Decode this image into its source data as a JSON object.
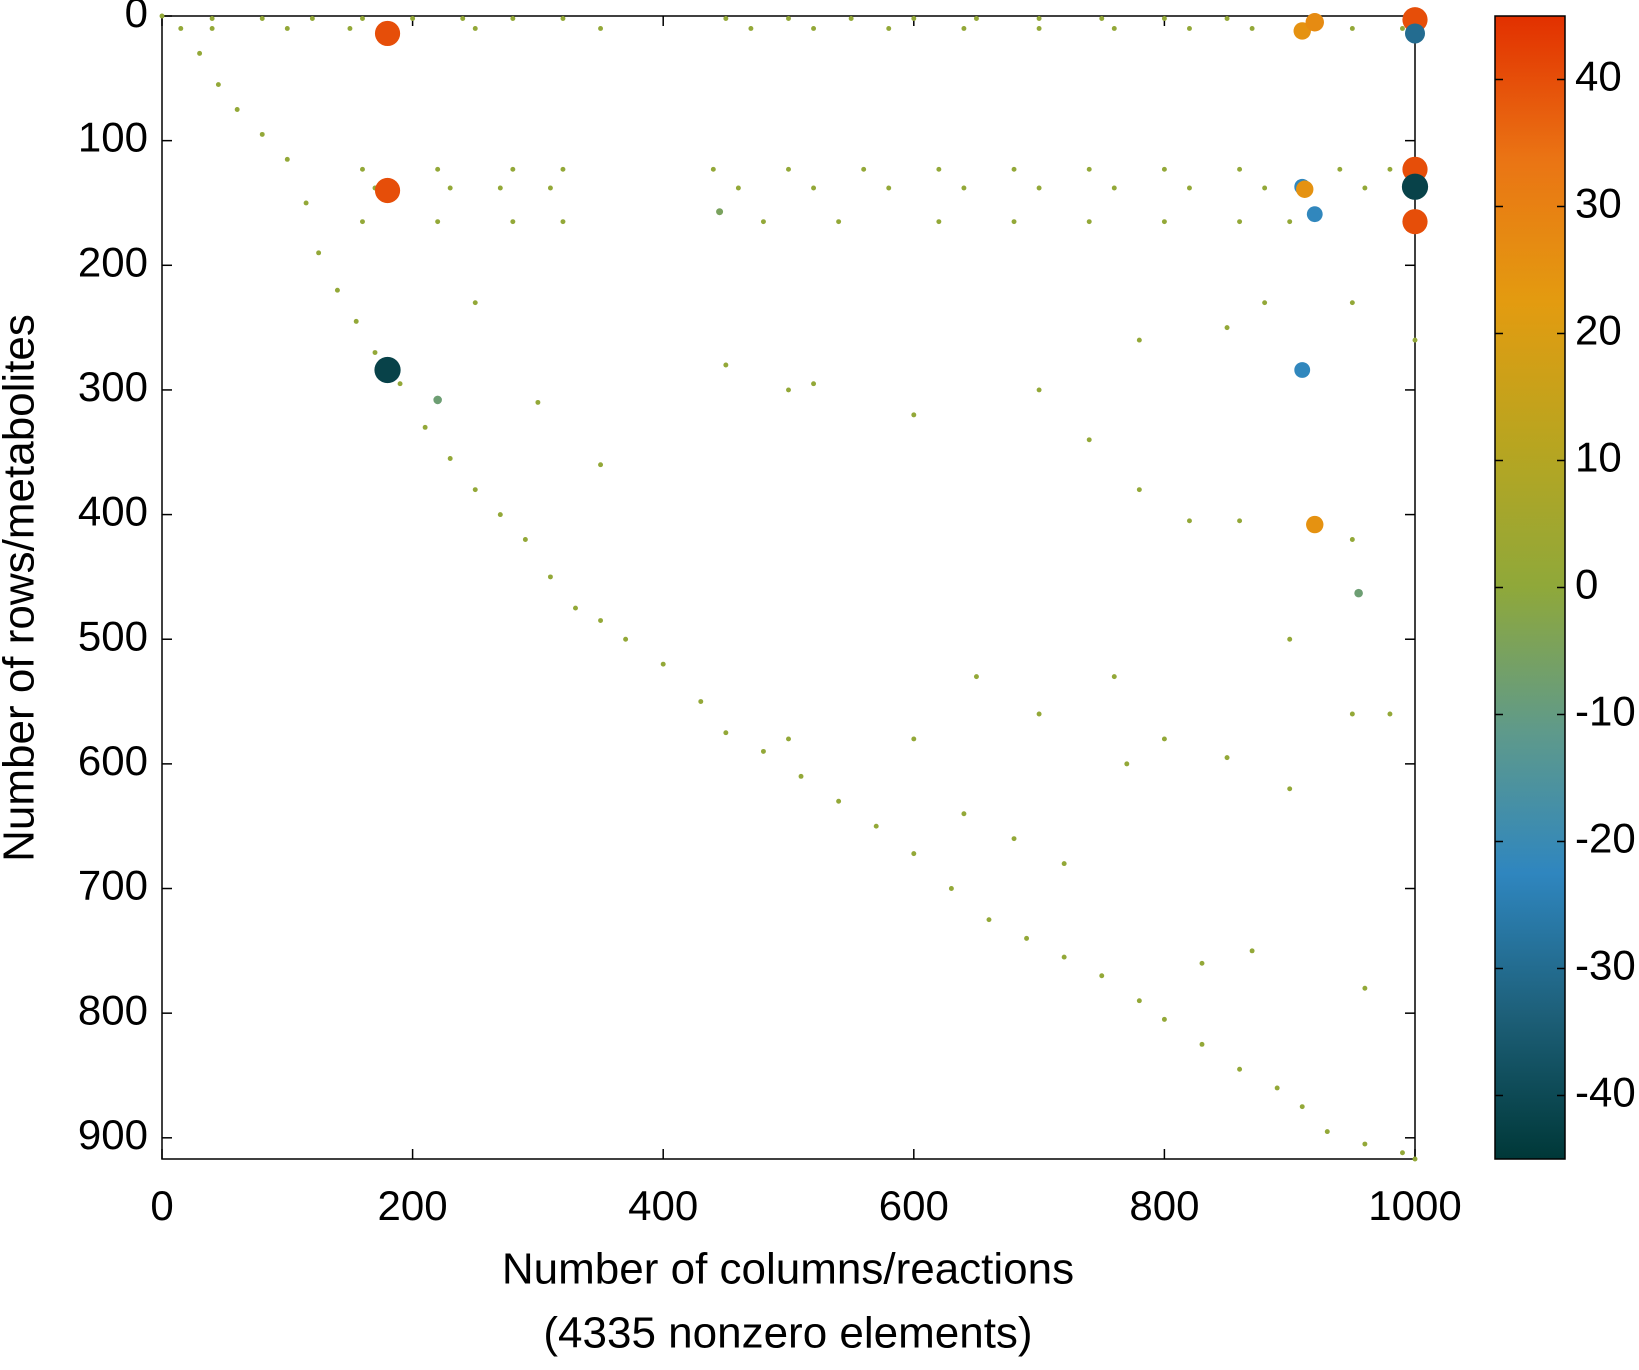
{
  "chart_data": {
    "type": "scatter",
    "ylabel": "Number of rows/metabolites",
    "xlabel": [
      "Number of columns/reactions",
      "(4335 nonzero elements)"
    ],
    "xlim": [
      0,
      1000
    ],
    "ylim": [
      917,
      0
    ],
    "xticks": [
      0,
      200,
      400,
      600,
      800,
      1000
    ],
    "yticks": [
      0,
      100,
      200,
      300,
      400,
      500,
      600,
      700,
      800,
      900
    ],
    "y_inverted": true,
    "clim": [
      -45,
      45
    ],
    "cticks": [
      -40,
      -30,
      -20,
      -10,
      0,
      10,
      20,
      30,
      40
    ],
    "colormap": [
      "#003838",
      "#1d5f78",
      "#2f86bf",
      "#5f9a8a",
      "#8fa83a",
      "#b8a520",
      "#e39b10",
      "#ea7414",
      "#e23000"
    ],
    "x": [
      0,
      15,
      30,
      45,
      60,
      80,
      100,
      115,
      125,
      140,
      155,
      170,
      190,
      210,
      230,
      250,
      270,
      290,
      310,
      330,
      350,
      370,
      400,
      430,
      450,
      480,
      510,
      540,
      570,
      600,
      630,
      660,
      690,
      720,
      750,
      780,
      800,
      830,
      860,
      890,
      910,
      930,
      960,
      990,
      1000,
      40,
      80,
      120,
      160,
      200,
      240,
      280,
      320,
      450,
      500,
      550,
      600,
      650,
      700,
      750,
      800,
      850,
      40,
      100,
      150,
      250,
      350,
      470,
      520,
      580,
      640,
      700,
      760,
      820,
      870,
      950,
      990,
      160,
      220,
      280,
      320,
      440,
      500,
      560,
      620,
      680,
      740,
      800,
      860,
      940,
      980,
      170,
      230,
      270,
      310,
      460,
      520,
      580,
      640,
      700,
      760,
      820,
      880,
      960,
      160,
      220,
      280,
      320,
      480,
      540,
      620,
      680,
      740,
      800,
      860,
      900,
      250,
      300,
      350,
      450,
      500,
      520,
      600,
      700,
      740,
      780,
      850,
      880,
      950,
      1000,
      780,
      820,
      860,
      900,
      950,
      500,
      600,
      640,
      680,
      720,
      770,
      800,
      850,
      900,
      950,
      980,
      650,
      700,
      760,
      830,
      870,
      960,
      180,
      180,
      180,
      910,
      920,
      1000,
      1000,
      1000,
      1000,
      1000,
      910,
      912,
      920,
      910,
      920,
      955,
      445,
      220
    ],
    "y": [
      0,
      10,
      30,
      55,
      75,
      95,
      115,
      150,
      190,
      220,
      245,
      270,
      295,
      330,
      355,
      380,
      400,
      420,
      450,
      475,
      485,
      500,
      520,
      550,
      575,
      590,
      610,
      630,
      650,
      672,
      700,
      725,
      740,
      755,
      770,
      790,
      805,
      825,
      845,
      860,
      875,
      895,
      905,
      912,
      917,
      2,
      2,
      2,
      2,
      2,
      2,
      2,
      2,
      2,
      2,
      2,
      2,
      2,
      2,
      2,
      2,
      2,
      10,
      10,
      10,
      10,
      10,
      10,
      10,
      10,
      10,
      10,
      10,
      10,
      10,
      10,
      10,
      123,
      123,
      123,
      123,
      123,
      123,
      123,
      123,
      123,
      123,
      123,
      123,
      123,
      123,
      138,
      138,
      138,
      138,
      138,
      138,
      138,
      138,
      138,
      138,
      138,
      138,
      138,
      165,
      165,
      165,
      165,
      165,
      165,
      165,
      165,
      165,
      165,
      165,
      165,
      230,
      310,
      360,
      280,
      300,
      295,
      320,
      300,
      340,
      260,
      250,
      230,
      230,
      260,
      380,
      405,
      405,
      500,
      420,
      580,
      580,
      640,
      660,
      680,
      600,
      580,
      595,
      620,
      560,
      560,
      530,
      560,
      530,
      760,
      750,
      780,
      14,
      140,
      284,
      12,
      5,
      3,
      14,
      123,
      137,
      165,
      137,
      139,
      159,
      284,
      408,
      463,
      157,
      308
    ],
    "values": [
      1,
      1,
      1,
      1,
      1,
      1,
      1,
      1,
      1,
      1,
      1,
      1,
      1,
      1,
      1,
      1,
      1,
      1,
      1,
      1,
      1,
      1,
      1,
      1,
      1,
      1,
      1,
      1,
      1,
      1,
      1,
      1,
      1,
      1,
      1,
      1,
      1,
      1,
      1,
      1,
      1,
      1,
      1,
      1,
      1,
      1,
      1,
      1,
      1,
      1,
      1,
      1,
      1,
      1,
      1,
      1,
      1,
      1,
      1,
      1,
      1,
      1,
      1,
      1,
      1,
      1,
      1,
      1,
      1,
      1,
      1,
      1,
      1,
      1,
      1,
      1,
      1,
      1,
      1,
      1,
      1,
      1,
      1,
      1,
      1,
      1,
      1,
      1,
      1,
      1,
      1,
      1,
      1,
      1,
      1,
      1,
      1,
      1,
      1,
      1,
      1,
      1,
      1,
      1,
      1,
      1,
      1,
      1,
      1,
      1,
      1,
      1,
      1,
      1,
      1,
      1,
      1,
      1,
      1,
      1,
      1,
      1,
      1,
      1,
      1,
      1,
      1,
      1,
      1,
      1,
      1,
      1,
      1,
      1,
      1,
      1,
      1,
      1,
      1,
      1,
      1,
      1,
      1,
      1,
      1,
      1,
      1,
      1,
      1,
      1,
      1,
      1,
      40,
      40,
      -42,
      25,
      27,
      40,
      -30,
      40,
      -42,
      40,
      -22,
      25,
      -22,
      -22,
      25,
      -8,
      -5,
      -8
    ]
  }
}
